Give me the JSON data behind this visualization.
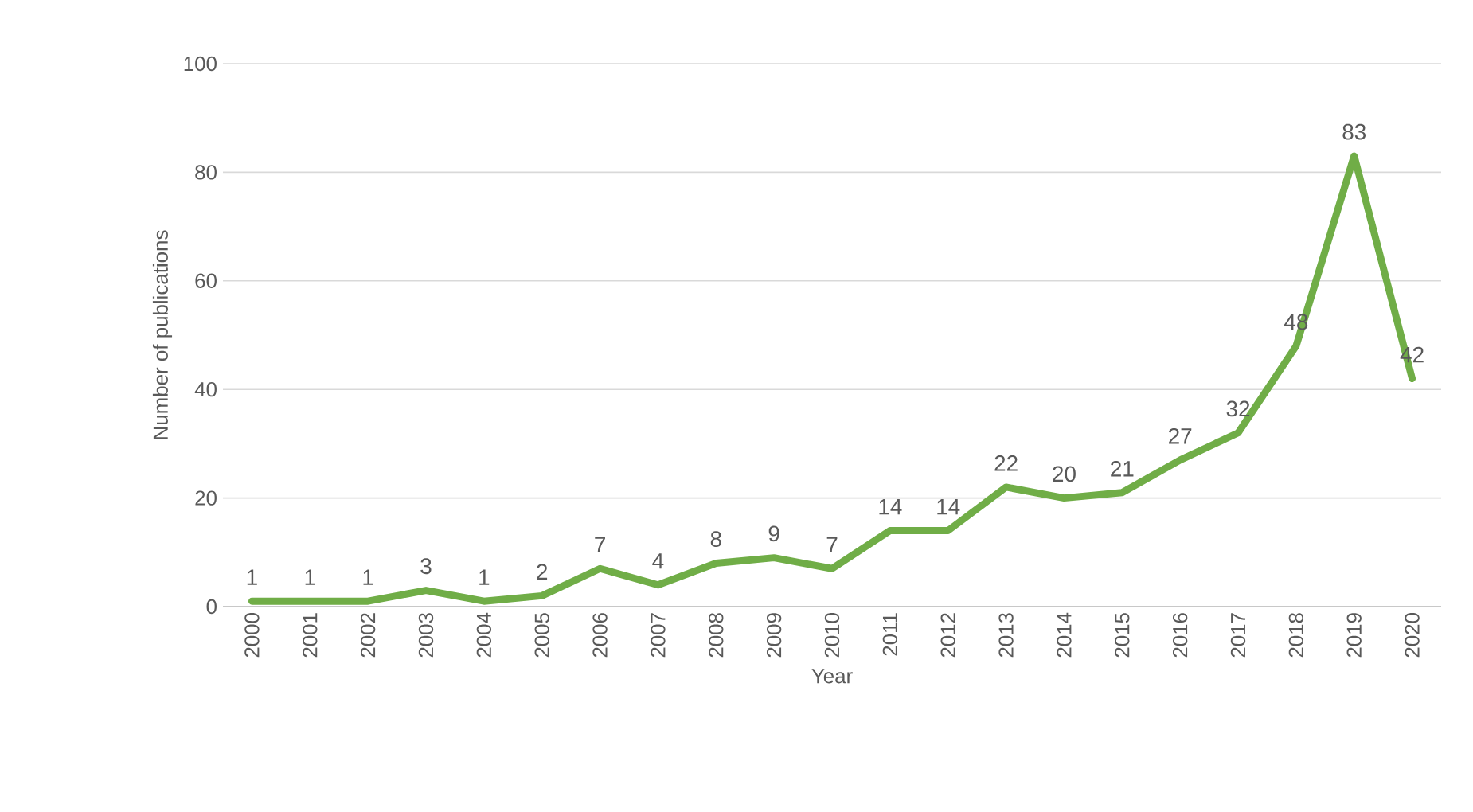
{
  "chart_data": {
    "type": "line",
    "xlabel": "Year",
    "ylabel": "Number of publications",
    "categories": [
      "2000",
      "2001",
      "2002",
      "2003",
      "2004",
      "2005",
      "2006",
      "2007",
      "2008",
      "2009",
      "2010",
      "2011",
      "2012",
      "2013",
      "2014",
      "2015",
      "2016",
      "2017",
      "2018",
      "2019",
      "2020"
    ],
    "values": [
      1,
      1,
      1,
      3,
      1,
      2,
      7,
      4,
      8,
      9,
      7,
      14,
      14,
      22,
      20,
      21,
      27,
      32,
      48,
      83,
      42
    ],
    "color": "#70ad47",
    "ylim": [
      0,
      100
    ],
    "yticks": [
      0,
      20,
      40,
      60,
      80,
      100
    ],
    "grid": "y",
    "data_labels": true,
    "marker": "none",
    "line_style": "solid"
  }
}
